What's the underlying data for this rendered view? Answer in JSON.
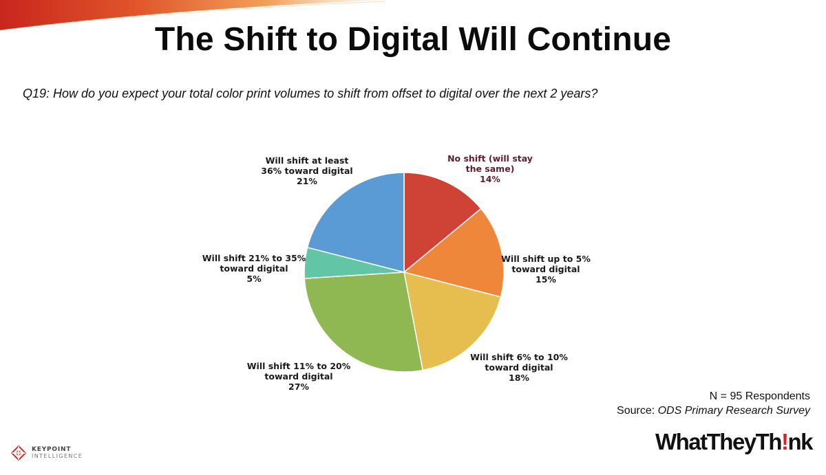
{
  "slide": {
    "title": "The Shift to Digital Will Continue",
    "question": "Q19: How do you expect your total color print volumes to shift from offset to digital over the next 2 years?"
  },
  "chart_data": {
    "type": "pie",
    "slices": [
      {
        "label_lines": [
          "No shift (will stay",
          "the same)"
        ],
        "value": 14,
        "value_text": "14%",
        "color": "#cf4236",
        "label_color": "#5a1f2e"
      },
      {
        "label_lines": [
          "Will shift up to 5%",
          "toward digital"
        ],
        "value": 15,
        "value_text": "15%",
        "color": "#ef873a",
        "label_color": "#1a1a1a"
      },
      {
        "label_lines": [
          "Will shift 6% to 10%",
          "toward digital"
        ],
        "value": 18,
        "value_text": "18%",
        "color": "#e5be4f",
        "label_color": "#1a1a1a"
      },
      {
        "label_lines": [
          "Will shift 11% to 20%",
          "toward digital"
        ],
        "value": 27,
        "value_text": "27%",
        "color": "#8fb852",
        "label_color": "#1a1a1a"
      },
      {
        "label_lines": [
          "Will shift 21% to 35%",
          "toward digital"
        ],
        "value": 5,
        "value_text": "5%",
        "color": "#62c6a6",
        "label_color": "#1a1a1a"
      },
      {
        "label_lines": [
          "Will shift at least",
          "36% toward digital"
        ],
        "value": 21,
        "value_text": "21%",
        "color": "#5b9bd5",
        "label_color": "#1a1a1a"
      }
    ]
  },
  "footnote": {
    "respondents": "N = 95 Respondents",
    "source_prefix": "Source: ",
    "source_title": "ODS Primary Research Survey"
  },
  "logos": {
    "keypoint_line1": "KEYPOINT",
    "keypoint_line2": "INTELLIGENCE",
    "wtt_part1": "WhatTheyTh",
    "wtt_bang": "!",
    "wtt_part2": "nk"
  }
}
